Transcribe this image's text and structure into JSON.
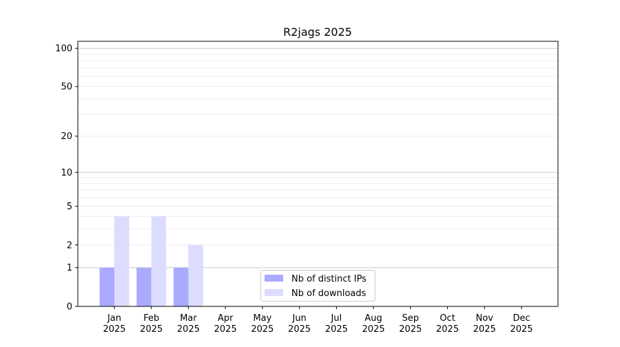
{
  "chart_data": {
    "type": "bar",
    "title": "R2jags 2025",
    "xlabel": "",
    "ylabel": "",
    "y_scale": "log(1+y)",
    "ylim": [
      0,
      114
    ],
    "yticks": [
      0,
      1,
      2,
      5,
      10,
      20,
      50,
      100
    ],
    "grid": "horizontal, major and minor",
    "legend_position": "lower-center",
    "categories": [
      "Jan\n2025",
      "Feb\n2025",
      "Mar\n2025",
      "Apr\n2025",
      "May\n2025",
      "Jun\n2025",
      "Jul\n2025",
      "Aug\n2025",
      "Sep\n2025",
      "Oct\n2025",
      "Nov\n2025",
      "Dec\n2025"
    ],
    "series": [
      {
        "name": "Nb of distinct IPs",
        "color": "#aaaaff",
        "values": [
          1,
          1,
          1,
          0,
          0,
          0,
          0,
          0,
          0,
          0,
          0,
          0
        ]
      },
      {
        "name": "Nb of downloads",
        "color": "#dcdcff",
        "values": [
          4,
          4,
          2,
          0,
          0,
          0,
          0,
          0,
          0,
          0,
          0,
          0
        ]
      }
    ]
  }
}
